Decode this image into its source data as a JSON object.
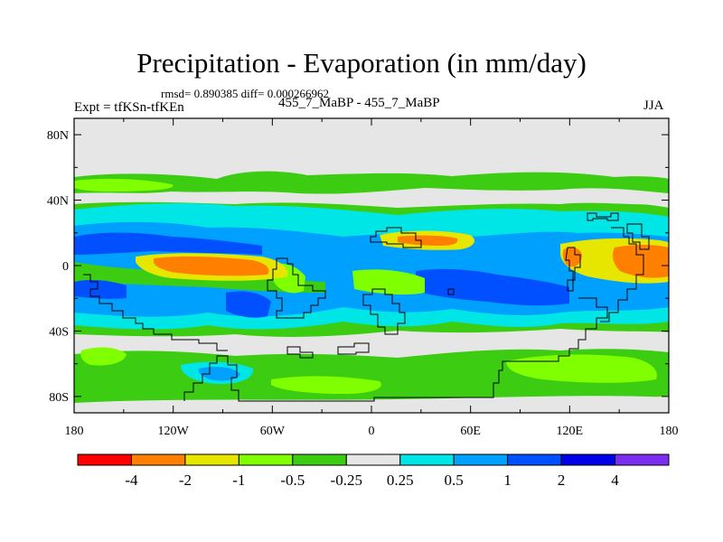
{
  "title": "Precipitation - Evaporation (in mm/day)",
  "stats": "rmsd= 0.890385 diff= 0.000266962",
  "left_label": "Expt = tfKSn-tfKEn",
  "center_label": "455_7_MaBP - 455_7_MaBP",
  "right_label": "JJA",
  "lat_ticks": [
    {
      "label": "80N",
      "lat": 80
    },
    {
      "label": "40N",
      "lat": 40
    },
    {
      "label": "0",
      "lat": 0
    },
    {
      "label": "40S",
      "lat": -40
    },
    {
      "label": "80S",
      "lat": -80
    }
  ],
  "lon_ticks": [
    {
      "label": "180",
      "lon": -180
    },
    {
      "label": "120W",
      "lon": -120
    },
    {
      "label": "60W",
      "lon": -60
    },
    {
      "label": "0",
      "lon": 0
    },
    {
      "label": "60E",
      "lon": 60
    },
    {
      "label": "120E",
      "lon": 120
    },
    {
      "label": "180",
      "lon": 180
    }
  ],
  "colorbar": {
    "colors": [
      "#ff0000",
      "#ff8000",
      "#e6e600",
      "#80ff00",
      "#3ccd12",
      "#e6e6e6",
      "#00e6e6",
      "#00a0ff",
      "#0050ff",
      "#0000e6",
      "#7b2ef0"
    ],
    "labels": [
      "-4",
      "-2",
      "-1",
      "-0.5",
      "-0.25",
      "0.25",
      "0.5",
      "1",
      "2",
      "4"
    ]
  },
  "colors": {
    "background": "#e6e6e6",
    "frame": "#000000",
    "coast": "#000000"
  }
}
